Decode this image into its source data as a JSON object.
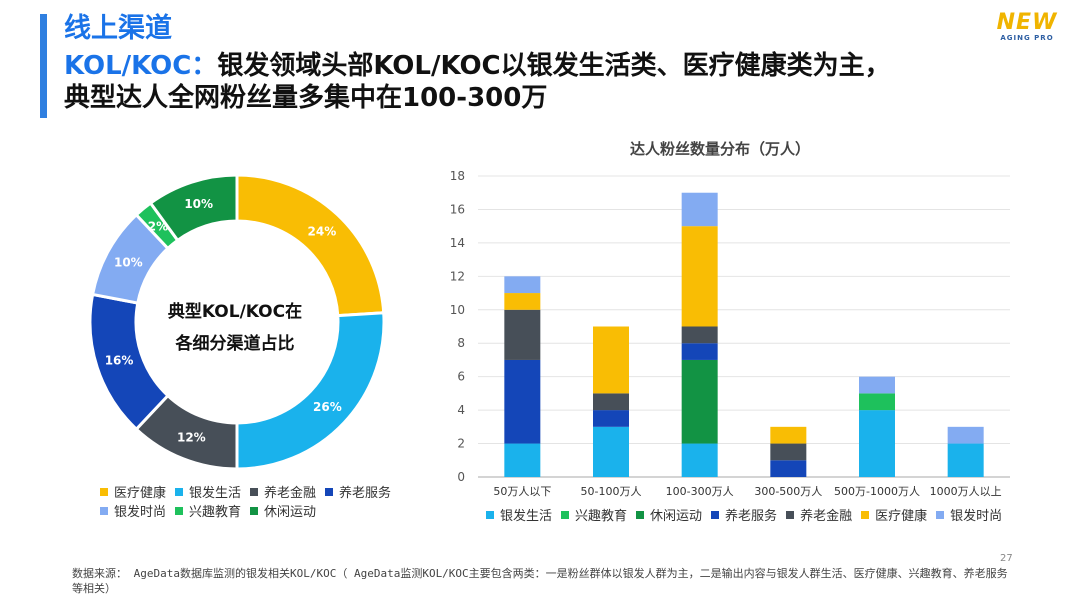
{
  "header": {
    "section_title": "线上渠道",
    "headline_prefix": "KOL/KOC：",
    "headline_rest": "银发领域头部KOL/KOC以银发生活类、医疗健康类为主，",
    "headline_line2": "典型达人全网粉丝量多集中在100-300万"
  },
  "logo": {
    "main": "NEW",
    "sub": "AGING PRO"
  },
  "colors": {
    "银发生活": "#1ab2ec",
    "兴趣教育": "#1ec15c",
    "休闲运动": "#129344",
    "养老服务": "#1446b8",
    "养老金融": "#474f58",
    "医疗健康": "#f9bd04",
    "银发时尚": "#83abf2"
  },
  "chart_data": [
    {
      "type": "pie",
      "variant": "donut",
      "center_label": [
        "典型KOL/KOC在",
        "各细分渠道占比"
      ],
      "slices": [
        {
          "label": "医疗健康",
          "value": 24,
          "text": "24%"
        },
        {
          "label": "银发生活",
          "value": 26,
          "text": "26%"
        },
        {
          "label": "养老金融",
          "value": 12,
          "text": "12%"
        },
        {
          "label": "养老服务",
          "value": 16,
          "text": "16%"
        },
        {
          "label": "银发时尚",
          "value": 10,
          "text": "10%"
        },
        {
          "label": "兴趣教育",
          "value": 2,
          "text": "2%"
        },
        {
          "label": "休闲运动",
          "value": 10,
          "text": "10%"
        }
      ],
      "legend": [
        "医疗健康",
        "银发生活",
        "养老金融",
        "养老服务",
        "银发时尚",
        "兴趣教育",
        "休闲运动"
      ]
    },
    {
      "type": "bar",
      "stacked": true,
      "title": "达人粉丝数量分布（万人）",
      "categories": [
        "50万人以下",
        "50-100万人",
        "100-300万人",
        "300-500万人",
        "500万-1000万人",
        "1000万人以上"
      ],
      "ylim": [
        0,
        18
      ],
      "yticks": [
        "0",
        "2",
        "4",
        "6",
        "8",
        "10",
        "12",
        "14",
        "16",
        "18"
      ],
      "grid": true,
      "legend_position": "bottom",
      "series": [
        {
          "name": "银发生活",
          "values": [
            2,
            3,
            2,
            0,
            4,
            2
          ]
        },
        {
          "name": "兴趣教育",
          "values": [
            0,
            0,
            0,
            0,
            1,
            0
          ]
        },
        {
          "name": "休闲运动",
          "values": [
            0,
            0,
            5,
            0,
            0,
            0
          ]
        },
        {
          "name": "养老服务",
          "values": [
            5,
            1,
            1,
            1,
            0,
            0
          ]
        },
        {
          "name": "养老金融",
          "values": [
            3,
            1,
            1,
            1,
            0,
            0
          ]
        },
        {
          "name": "医疗健康",
          "values": [
            1,
            4,
            6,
            1,
            0,
            0
          ]
        },
        {
          "name": "银发时尚",
          "values": [
            1,
            0,
            2,
            0,
            1,
            1
          ]
        }
      ]
    }
  ],
  "footer": {
    "source": "数据来源： AgeData数据库监测的银发相关KOL/KOC（ AgeData监测KOL/KOC主要包含两类：一是粉丝群体以银发人群为主，二是输出内容与银发人群生活、医疗健康、兴趣教育、养老服务等相关）",
    "page_number": "27"
  }
}
